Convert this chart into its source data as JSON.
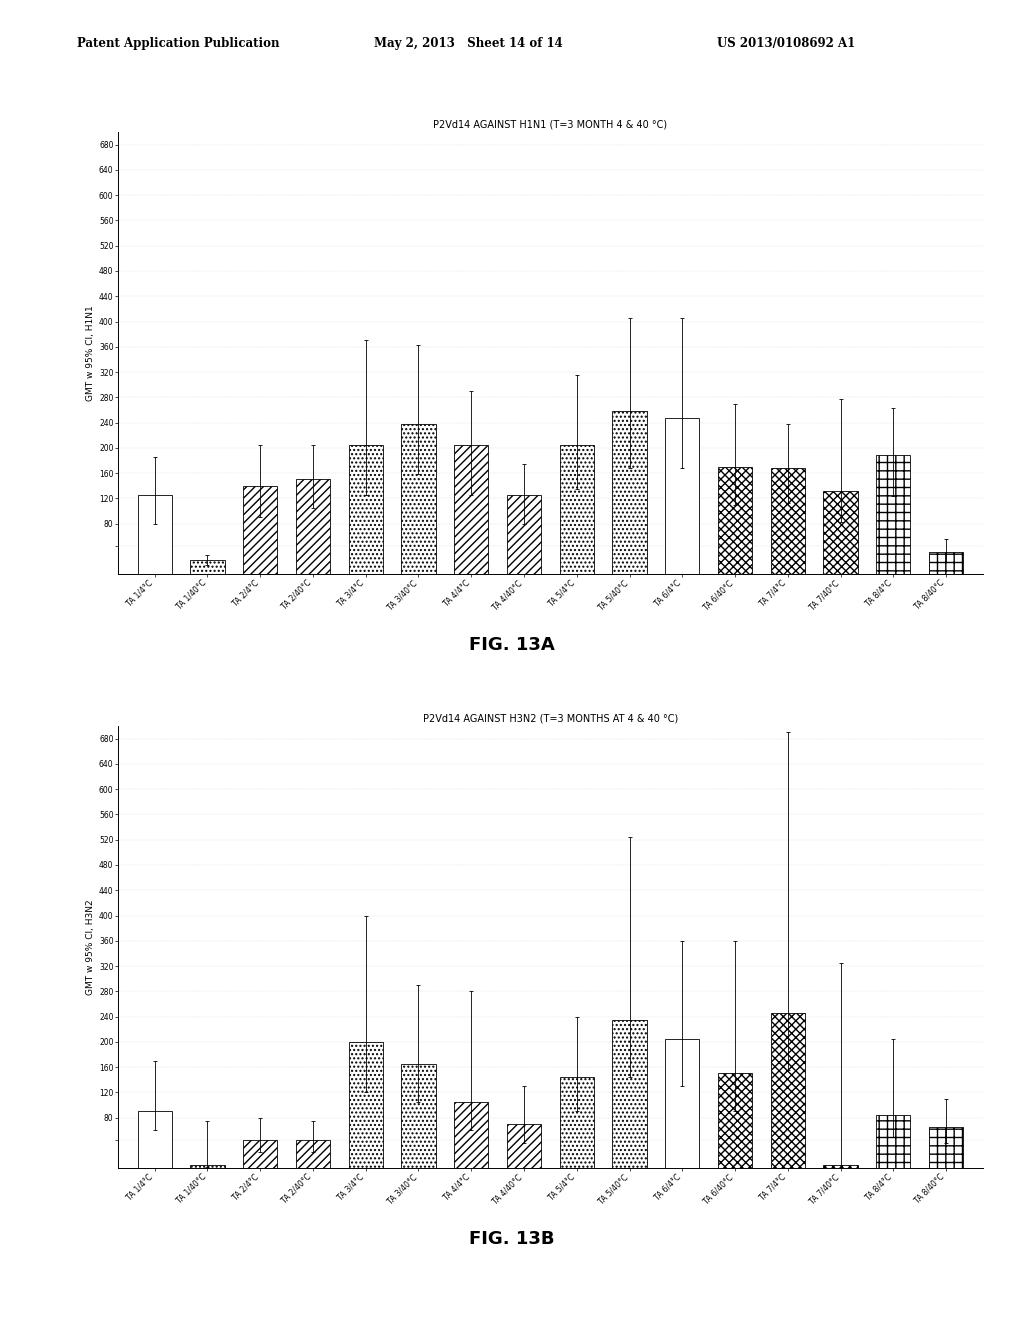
{
  "fig13a": {
    "title": "P2Vd14 AGAINST H1N1 (T=3 MONTH 4 & 40 °C)",
    "ylabel": "GMT w 95% CI, H1N1",
    "bars": [
      {
        "label": "TA 1/4°C",
        "value": 125,
        "err_lo": 45,
        "err_hi": 60,
        "hatch": ""
      },
      {
        "label": "TA 1/40°C",
        "value": 22,
        "err_lo": 8,
        "err_hi": 8,
        "hatch": "...."
      },
      {
        "label": "TA 2/4°C",
        "value": 140,
        "err_lo": 50,
        "err_hi": 65,
        "hatch": "////"
      },
      {
        "label": "TA 2/40°C",
        "value": 150,
        "err_lo": 45,
        "err_hi": 55,
        "hatch": "////"
      },
      {
        "label": "TA 3/4°C",
        "value": 205,
        "err_lo": 80,
        "err_hi": 165,
        "hatch": "...."
      },
      {
        "label": "TA 3/40°C",
        "value": 238,
        "err_lo": 80,
        "err_hi": 125,
        "hatch": "...."
      },
      {
        "label": "TA 4/4°C",
        "value": 205,
        "err_lo": 80,
        "err_hi": 85,
        "hatch": "////"
      },
      {
        "label": "TA 4/40°C",
        "value": 125,
        "err_lo": 45,
        "err_hi": 50,
        "hatch": "////"
      },
      {
        "label": "TA 5/4°C",
        "value": 205,
        "err_lo": 70,
        "err_hi": 110,
        "hatch": "...."
      },
      {
        "label": "TA 5/40°C",
        "value": 258,
        "err_lo": 90,
        "err_hi": 148,
        "hatch": "...."
      },
      {
        "label": "TA 6/4°C",
        "value": 248,
        "err_lo": 80,
        "err_hi": 158,
        "hatch": ""
      },
      {
        "label": "TA 6/40°C",
        "value": 170,
        "err_lo": 60,
        "err_hi": 100,
        "hatch": "xxxx"
      },
      {
        "label": "TA 7/4°C",
        "value": 168,
        "err_lo": 55,
        "err_hi": 70,
        "hatch": "xxxx"
      },
      {
        "label": "TA 7/40°C",
        "value": 132,
        "err_lo": 50,
        "err_hi": 145,
        "hatch": "xxxx"
      },
      {
        "label": "TA 8/4°C",
        "value": 188,
        "err_lo": 65,
        "err_hi": 75,
        "hatch": "++"
      },
      {
        "label": "TA 8/40°C",
        "value": 35,
        "err_lo": 15,
        "err_hi": 20,
        "hatch": "++"
      }
    ],
    "ylim": [
      0,
      700
    ],
    "yticks": [
      45,
      80,
      120,
      160,
      200,
      240,
      280,
      320,
      360,
      400,
      440,
      480,
      520,
      560,
      600,
      640,
      680
    ],
    "yticklabels": [
      "",
      "80",
      "120",
      "160",
      "200",
      "240",
      "280",
      "320",
      "360",
      "400",
      "440",
      "480",
      "520",
      "560",
      "600",
      "640",
      "680"
    ]
  },
  "fig13b": {
    "title": "P2Vd14 AGAINST H3N2 (T=3 MONTHS AT 4 & 40 °C)",
    "ylabel": "GMT w 95% CI, H3N2",
    "bars": [
      {
        "label": "TA 1/4°C",
        "value": 90,
        "err_lo": 30,
        "err_hi": 80,
        "hatch": ""
      },
      {
        "label": "TA 1/40°C",
        "value": 5,
        "err_lo": 3,
        "err_hi": 70,
        "hatch": "...."
      },
      {
        "label": "TA 2/4°C",
        "value": 45,
        "err_lo": 20,
        "err_hi": 35,
        "hatch": "////"
      },
      {
        "label": "TA 2/40°C",
        "value": 45,
        "err_lo": 20,
        "err_hi": 30,
        "hatch": "////"
      },
      {
        "label": "TA 3/4°C",
        "value": 200,
        "err_lo": 80,
        "err_hi": 200,
        "hatch": "...."
      },
      {
        "label": "TA 3/40°C",
        "value": 165,
        "err_lo": 60,
        "err_hi": 125,
        "hatch": "...."
      },
      {
        "label": "TA 4/4°C",
        "value": 105,
        "err_lo": 45,
        "err_hi": 175,
        "hatch": "////"
      },
      {
        "label": "TA 4/40°C",
        "value": 70,
        "err_lo": 30,
        "err_hi": 60,
        "hatch": "////"
      },
      {
        "label": "TA 5/4°C",
        "value": 145,
        "err_lo": 55,
        "err_hi": 95,
        "hatch": "...."
      },
      {
        "label": "TA 5/40°C",
        "value": 235,
        "err_lo": 90,
        "err_hi": 290,
        "hatch": "...."
      },
      {
        "label": "TA 6/4°C",
        "value": 205,
        "err_lo": 75,
        "err_hi": 155,
        "hatch": ""
      },
      {
        "label": "TA 6/40°C",
        "value": 150,
        "err_lo": 60,
        "err_hi": 210,
        "hatch": "xxxx"
      },
      {
        "label": "TA 7/4°C",
        "value": 245,
        "err_lo": 90,
        "err_hi": 445,
        "hatch": "xxxx"
      },
      {
        "label": "TA 7/40°C",
        "value": 5,
        "err_lo": 3,
        "err_hi": 320,
        "hatch": "xxxx"
      },
      {
        "label": "TA 8/4°C",
        "value": 85,
        "err_lo": 35,
        "err_hi": 120,
        "hatch": "++"
      },
      {
        "label": "TA 8/40°C",
        "value": 65,
        "err_lo": 25,
        "err_hi": 45,
        "hatch": "++"
      }
    ],
    "ylim": [
      0,
      700
    ],
    "yticks": [
      45,
      80,
      120,
      160,
      200,
      240,
      280,
      320,
      360,
      400,
      440,
      480,
      520,
      560,
      600,
      640,
      680
    ],
    "yticklabels": [
      "",
      "80",
      "120",
      "160",
      "200",
      "240",
      "280",
      "320",
      "360",
      "400",
      "440",
      "480",
      "520",
      "560",
      "600",
      "640",
      "680"
    ]
  },
  "fig_label_a": "FIG. 13A",
  "fig_label_b": "FIG. 13B",
  "header_left": "Patent Application Publication",
  "header_mid": "May 2, 2013   Sheet 14 of 14",
  "header_right": "US 2013/0108692 A1",
  "bar_width": 0.65,
  "background_color": "white"
}
